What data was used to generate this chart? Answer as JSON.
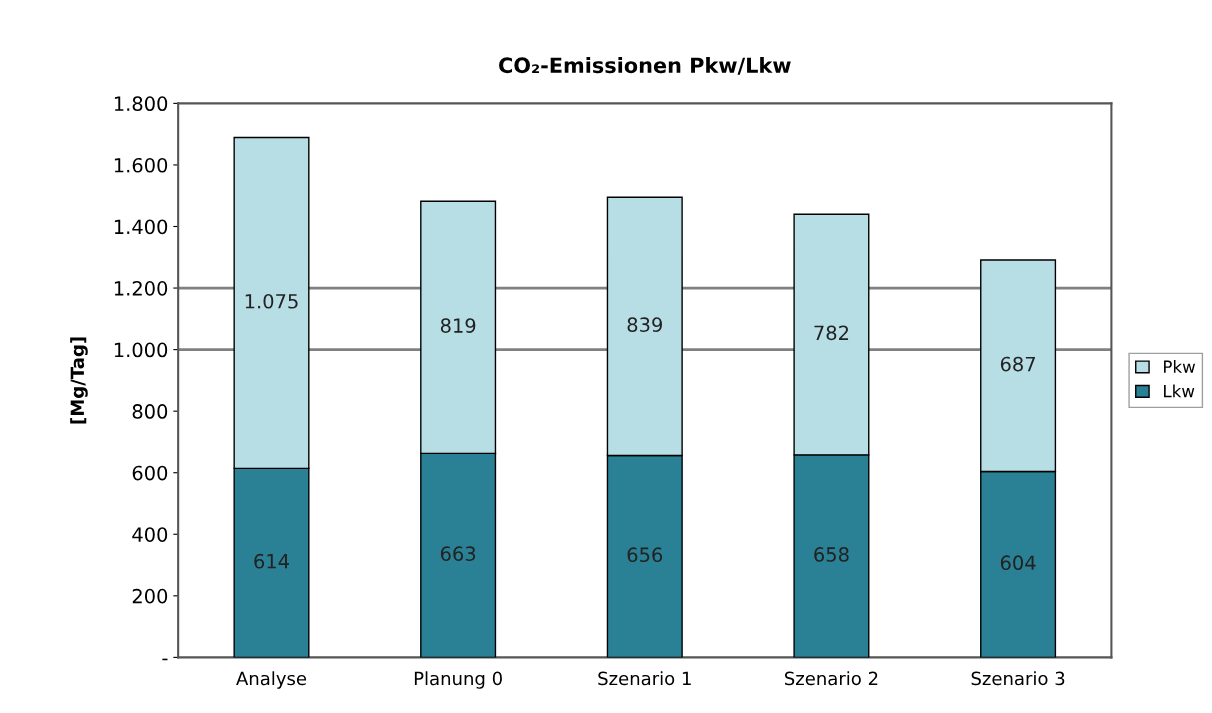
{
  "chart_data": {
    "type": "bar",
    "title": "CO₂-Emissionen Pkw/Lkw",
    "ylabel": "[Mg/Tag]",
    "categories": [
      "Analyse",
      "Planung 0",
      "Szenario 1",
      "Szenario 2",
      "Szenario 3"
    ],
    "stacked": true,
    "data_labels": true,
    "legend": "right",
    "grid": false,
    "series": [
      {
        "name": "Lkw",
        "color": "#2a8094",
        "values": [
          614,
          663,
          656,
          658,
          604
        ],
        "value_labels": [
          "614",
          "663",
          "656",
          "658",
          "604"
        ]
      },
      {
        "name": "Pkw",
        "color": "#b7dde5",
        "values": [
          1075,
          819,
          839,
          782,
          687
        ],
        "value_labels": [
          "1.075",
          "819",
          "839",
          "782",
          "687"
        ]
      }
    ],
    "ylim": [
      0,
      1800
    ],
    "yticks": [
      {
        "value": 0,
        "label": "-"
      },
      {
        "value": 200,
        "label": "200"
      },
      {
        "value": 400,
        "label": "400"
      },
      {
        "value": 600,
        "label": "600"
      },
      {
        "value": 800,
        "label": "800"
      },
      {
        "value": 1000,
        "label": "1.000"
      },
      {
        "value": 1200,
        "label": "1.200"
      },
      {
        "value": 1400,
        "label": "1.400"
      },
      {
        "value": 1600,
        "label": "1.600"
      },
      {
        "value": 1800,
        "label": "1.800"
      }
    ],
    "ref_lines": [
      {
        "axis": "y",
        "value": 1000,
        "color": "#808080"
      },
      {
        "axis": "y",
        "value": 1200,
        "color": "#808080"
      }
    ]
  }
}
